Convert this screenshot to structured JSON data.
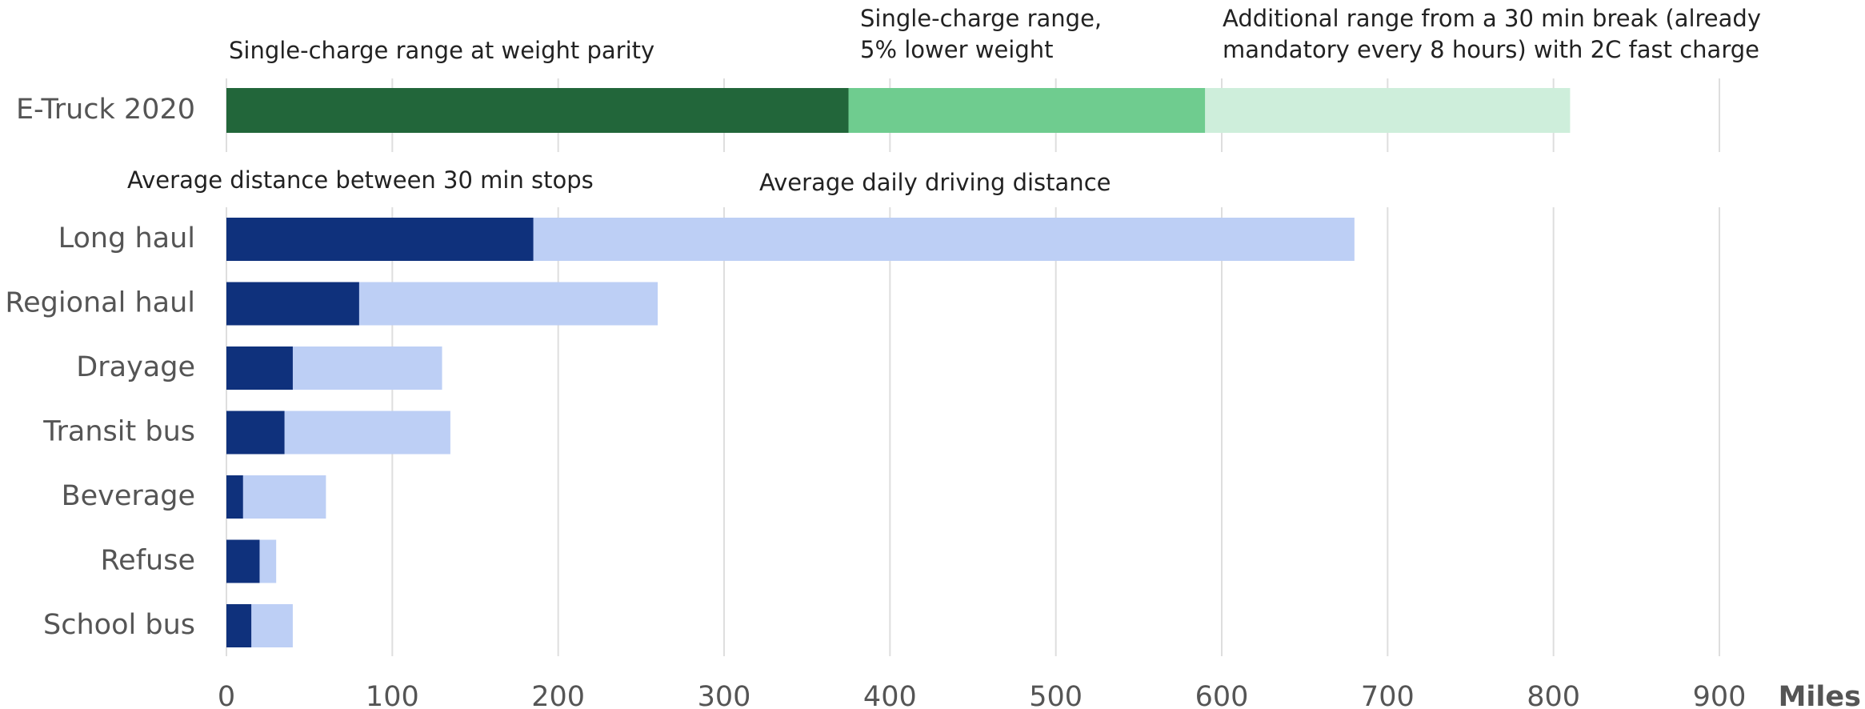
{
  "chart_data": [
    {
      "type": "bar",
      "orientation": "horizontal",
      "stacked": true,
      "categories": [
        "E-Truck 2020"
      ],
      "series": [
        {
          "name": "Single-charge range at weight parity",
          "color": "#22663a",
          "values": [
            375
          ]
        },
        {
          "name": "Single-charge range,\n5% lower weight",
          "color": "#6fcc8f",
          "values": [
            215
          ]
        },
        {
          "name": "Additional range from a 30 min break (already\nmandatory every 8 hours) with 2C fast charge",
          "color": "#ceeedb",
          "values": [
            220
          ]
        }
      ],
      "xlim": [
        0,
        900
      ],
      "xticks": [
        0,
        100,
        200,
        300,
        400,
        500,
        600,
        700,
        800,
        900
      ],
      "grid": true
    },
    {
      "type": "bar",
      "orientation": "horizontal",
      "stacked": false,
      "categories": [
        "Long haul",
        "Regional haul",
        "Drayage",
        "Transit bus",
        "Beverage",
        "Refuse",
        "School bus"
      ],
      "series": [
        {
          "name": "Average daily driving distance",
          "color": "#bdcff5",
          "values": [
            680,
            260,
            130,
            135,
            60,
            30,
            40
          ]
        },
        {
          "name": "Average distance between 30 min stops",
          "color": "#0f317c",
          "values": [
            185,
            80,
            40,
            35,
            10,
            20,
            15
          ]
        }
      ],
      "xlabel": "Miles",
      "xlim": [
        0,
        900
      ],
      "xticks": [
        0,
        100,
        200,
        300,
        400,
        500,
        600,
        700,
        800,
        900
      ],
      "grid": true
    }
  ]
}
